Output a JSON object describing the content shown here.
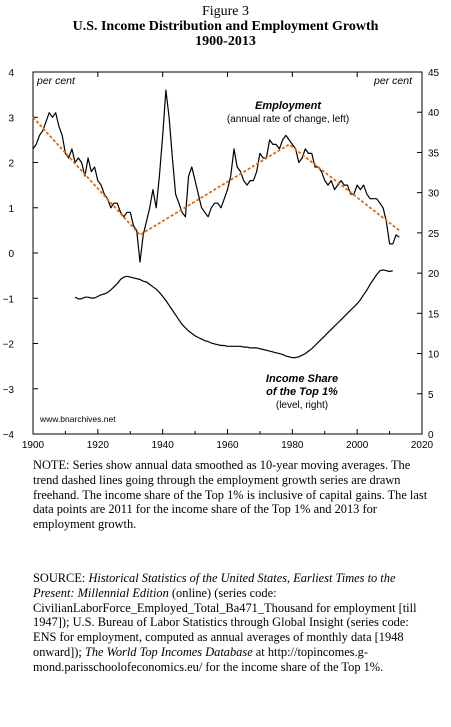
{
  "figure": {
    "number": "Figure 3",
    "title_line1": "U.S. Income Distribution and Employment Growth",
    "title_line2": "1900-2013"
  },
  "chart_data": {
    "type": "line",
    "x_ticks": [
      1900,
      1920,
      1940,
      1960,
      1980,
      2000,
      2020
    ],
    "xlim": [
      1900,
      2020
    ],
    "left_axis": {
      "unit_label": "per cent",
      "ylim": [
        -4,
        4
      ],
      "ticks": [
        4,
        3,
        2,
        1,
        0,
        -1,
        -2,
        -3,
        -4
      ]
    },
    "right_axis": {
      "unit_label": "per cent",
      "ylim": [
        0,
        45
      ],
      "ticks": [
        45,
        40,
        35,
        30,
        25,
        20,
        15,
        10,
        5,
        0
      ]
    },
    "grid": false,
    "series": [
      {
        "name": "Employment",
        "sublabel": "(annual rate of change, left)",
        "axis": "left",
        "color": "#000000",
        "x": [
          1900,
          1901,
          1902,
          1903,
          1904,
          1905,
          1906,
          1907,
          1908,
          1909,
          1910,
          1911,
          1912,
          1913,
          1914,
          1915,
          1916,
          1917,
          1918,
          1919,
          1920,
          1921,
          1922,
          1923,
          1924,
          1925,
          1926,
          1927,
          1928,
          1929,
          1930,
          1931,
          1932,
          1933,
          1934,
          1935,
          1936,
          1937,
          1938,
          1939,
          1940,
          1941,
          1942,
          1943,
          1944,
          1945,
          1946,
          1947,
          1948,
          1949,
          1950,
          1951,
          1952,
          1953,
          1954,
          1955,
          1956,
          1957,
          1958,
          1959,
          1960,
          1961,
          1962,
          1963,
          1964,
          1965,
          1966,
          1967,
          1968,
          1969,
          1970,
          1971,
          1972,
          1973,
          1974,
          1975,
          1976,
          1977,
          1978,
          1979,
          1980,
          1981,
          1982,
          1983,
          1984,
          1985,
          1986,
          1987,
          1988,
          1989,
          1990,
          1991,
          1992,
          1993,
          1994,
          1995,
          1996,
          1997,
          1998,
          1999,
          2000,
          2001,
          2002,
          2003,
          2004,
          2005,
          2006,
          2007,
          2008,
          2009,
          2010,
          2011,
          2012,
          2013
        ],
        "values": [
          2.3,
          2.4,
          2.6,
          2.7,
          2.9,
          3.1,
          3.0,
          3.1,
          2.8,
          2.6,
          2.2,
          2.1,
          2.3,
          2.0,
          2.1,
          2.0,
          1.7,
          2.1,
          1.8,
          1.9,
          1.6,
          1.5,
          1.3,
          1.2,
          1.0,
          1.1,
          1.1,
          0.9,
          0.8,
          0.9,
          0.9,
          0.6,
          0.5,
          -0.2,
          0.4,
          0.7,
          1.0,
          1.4,
          1.0,
          1.7,
          2.6,
          3.6,
          3.0,
          2.1,
          1.3,
          1.1,
          0.9,
          0.8,
          1.7,
          1.9,
          1.6,
          1.3,
          1.0,
          0.9,
          0.8,
          1.0,
          1.1,
          1.1,
          1.0,
          1.2,
          1.4,
          1.7,
          2.3,
          1.9,
          1.8,
          1.6,
          1.5,
          1.6,
          1.6,
          1.8,
          2.2,
          2.1,
          2.1,
          2.5,
          2.4,
          2.4,
          2.3,
          2.5,
          2.6,
          2.5,
          2.4,
          2.3,
          2.0,
          2.1,
          2.3,
          2.2,
          2.2,
          1.9,
          1.9,
          1.8,
          1.6,
          1.5,
          1.6,
          1.4,
          1.5,
          1.6,
          1.5,
          1.5,
          1.3,
          1.3,
          1.5,
          1.4,
          1.5,
          1.3,
          1.2,
          1.2,
          1.2,
          1.1,
          1.0,
          0.7,
          0.2,
          0.2,
          0.4,
          0.35
        ]
      },
      {
        "name": "Income Share of the Top 1%",
        "sublabel": "(level, right)",
        "axis": "right",
        "color": "#000000",
        "x": [
          1913,
          1914,
          1915,
          1916,
          1917,
          1918,
          1919,
          1920,
          1921,
          1922,
          1923,
          1924,
          1925,
          1926,
          1927,
          1928,
          1929,
          1930,
          1931,
          1932,
          1933,
          1934,
          1935,
          1936,
          1937,
          1938,
          1939,
          1940,
          1941,
          1942,
          1943,
          1944,
          1945,
          1946,
          1947,
          1948,
          1949,
          1950,
          1951,
          1952,
          1953,
          1954,
          1955,
          1956,
          1957,
          1958,
          1959,
          1960,
          1961,
          1962,
          1963,
          1964,
          1965,
          1966,
          1967,
          1968,
          1969,
          1970,
          1971,
          1972,
          1973,
          1974,
          1975,
          1976,
          1977,
          1978,
          1979,
          1980,
          1981,
          1982,
          1983,
          1984,
          1985,
          1986,
          1987,
          1988,
          1989,
          1990,
          1991,
          1992,
          1993,
          1994,
          1995,
          1996,
          1997,
          1998,
          1999,
          2000,
          2001,
          2002,
          2003,
          2004,
          2005,
          2006,
          2007,
          2008,
          2009,
          2010,
          2011
        ],
        "values": [
          17.0,
          16.8,
          16.8,
          17.0,
          17.0,
          16.9,
          16.9,
          17.1,
          17.3,
          17.4,
          17.6,
          17.9,
          18.3,
          18.7,
          19.2,
          19.5,
          19.6,
          19.5,
          19.4,
          19.3,
          19.2,
          19.0,
          18.9,
          18.6,
          18.3,
          18.0,
          17.6,
          17.1,
          16.6,
          16.0,
          15.4,
          14.8,
          14.2,
          13.6,
          13.2,
          12.8,
          12.5,
          12.2,
          12.0,
          11.8,
          11.6,
          11.5,
          11.3,
          11.2,
          11.1,
          11.0,
          11.0,
          10.9,
          10.9,
          10.9,
          10.9,
          10.9,
          10.8,
          10.8,
          10.7,
          10.7,
          10.7,
          10.6,
          10.5,
          10.4,
          10.3,
          10.2,
          10.1,
          10.0,
          9.9,
          9.7,
          9.6,
          9.5,
          9.5,
          9.6,
          9.8,
          10.0,
          10.3,
          10.6,
          11.0,
          11.4,
          11.8,
          12.2,
          12.6,
          13.0,
          13.4,
          13.8,
          14.2,
          14.6,
          15.0,
          15.4,
          15.8,
          16.2,
          16.7,
          17.3,
          17.9,
          18.6,
          19.2,
          19.8,
          20.3,
          20.4,
          20.3,
          20.2,
          20.3
        ]
      },
      {
        "name": "",
        "style": "dashed",
        "axis": "left",
        "color": "#e06a10",
        "x": [
          1900,
          1933,
          1979,
          2013
        ],
        "values": [
          3.0,
          0.4,
          2.4,
          0.5
        ]
      }
    ],
    "annotations": {
      "employment_label": "Employment",
      "employment_sublabel": "(annual rate of change, left)",
      "income_label_line1": "Income Share",
      "income_label_line2": "of the Top 1%",
      "income_sublabel": "(level, right)",
      "source_site": "www.bnarchives.net"
    }
  },
  "notes": {
    "note_text": "NOTE: Series show annual data smoothed as 10-year moving averages. The trend dashed lines going through the employment growth series are drawn freehand. The income share of the Top 1% is inclusive of capital gains. The last data points are 2011 for the income share of the Top 1% and 2013 for employment growth.",
    "source_prefix": "SOURCE: ",
    "source_title1": "Historical Statistics of the United States, Earliest Times to the Present: Millennial Edition",
    "source_mid1": " (online) (series code: CivilianLaborForce_Employed_Total_Ba471_Thousand for employment [till 1947]); U.S. Bureau of Labor Statistics through Global Insight (series code: ENS for employment, computed as annual averages of monthly data [1948 onward]); ",
    "source_title2": "The World Top Incomes Database",
    "source_mid2": " at http://topincomes.g-mond.parisschoolofeconomics.eu/ for the income share of the Top 1%."
  }
}
